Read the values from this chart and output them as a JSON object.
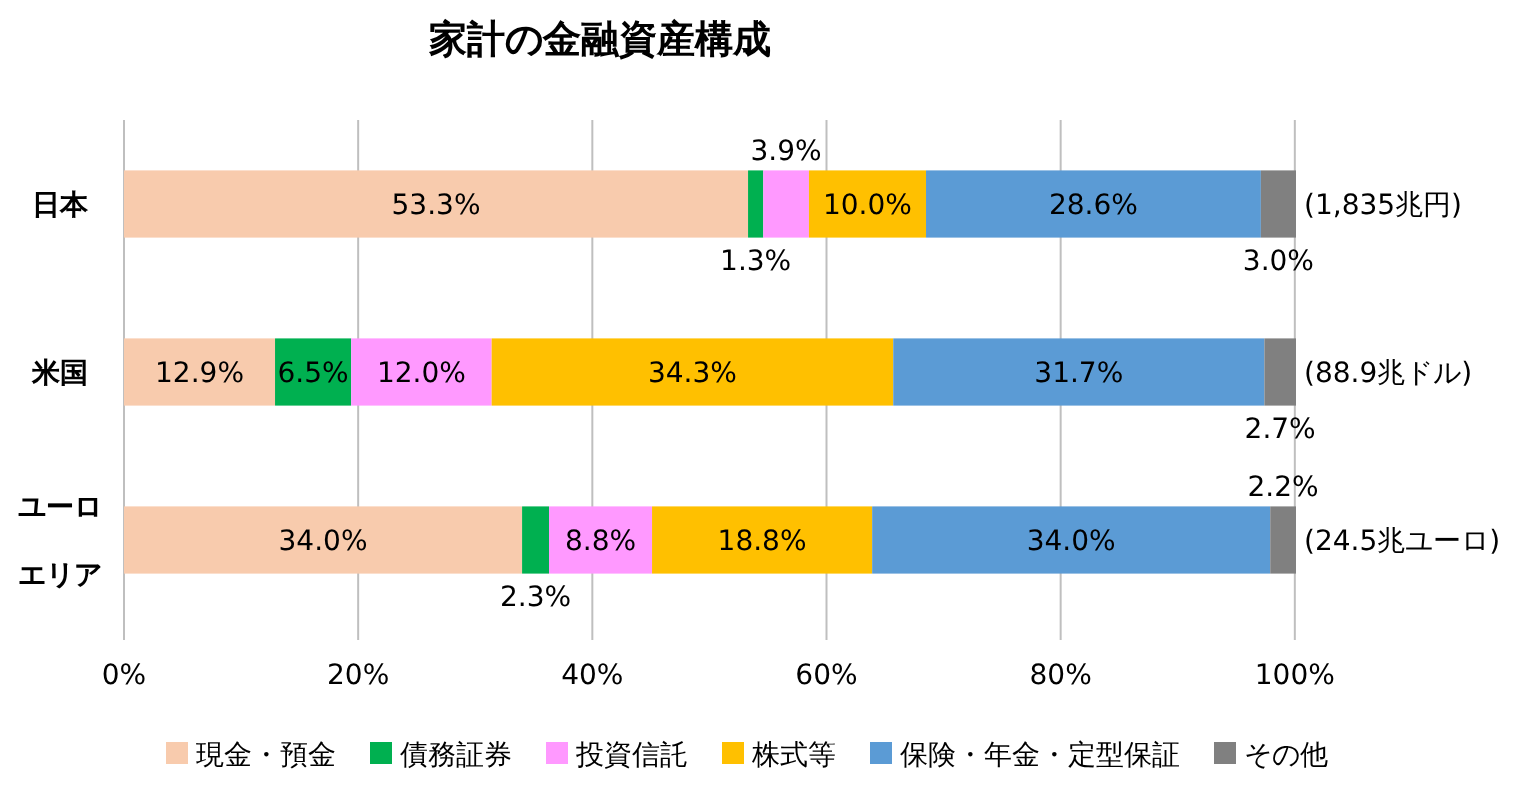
{
  "chart_data": {
    "type": "bar",
    "orientation": "horizontal",
    "stacked": true,
    "title": "家計の金融資産構成",
    "categories": [
      "日本",
      "米国",
      "ユーロエリア"
    ],
    "series": [
      {
        "name": "現金・預金",
        "color": "#f8cbad",
        "values": [
          53.3,
          12.9,
          34.0
        ],
        "value_labels": [
          "53.3%",
          "12.9%",
          "34.0%"
        ]
      },
      {
        "name": "債務証券",
        "color": "#00b050",
        "values": [
          1.3,
          6.5,
          2.3
        ],
        "value_labels": [
          "1.3%",
          "6.5%",
          "2.3%"
        ]
      },
      {
        "name": "投資信託",
        "color": "#ff99ff",
        "values": [
          3.9,
          12.0,
          8.8
        ],
        "value_labels": [
          "3.9%",
          "12.0%",
          "8.8%"
        ]
      },
      {
        "name": "株式等",
        "color": "#ffc000",
        "values": [
          10.0,
          34.3,
          18.8
        ],
        "value_labels": [
          "10.0%",
          "34.3%",
          "18.8%"
        ]
      },
      {
        "name": "保険・年金・定型保証",
        "color": "#5b9bd5",
        "values": [
          28.6,
          31.7,
          34.0
        ],
        "value_labels": [
          "28.6%",
          "31.7%",
          "34.0%"
        ]
      },
      {
        "name": "その他",
        "color": "#808080",
        "values": [
          3.0,
          2.7,
          2.2
        ],
        "value_labels": [
          "3.0%",
          "2.7%",
          "2.2%"
        ]
      }
    ],
    "xlim": [
      0,
      100.1
    ],
    "xticks": [
      {
        "value": 0,
        "label": "0%"
      },
      {
        "value": 20,
        "label": "20%"
      },
      {
        "value": 40,
        "label": "40%"
      },
      {
        "value": 60,
        "label": "60%"
      },
      {
        "value": 80,
        "label": "80%"
      },
      {
        "value": 100,
        "label": "100%"
      }
    ],
    "grid": "x",
    "legend": "bottom",
    "annotations": [
      "(1,835兆円)",
      "(88.9兆ドル)",
      "(24.5兆ユーロ)"
    ]
  }
}
